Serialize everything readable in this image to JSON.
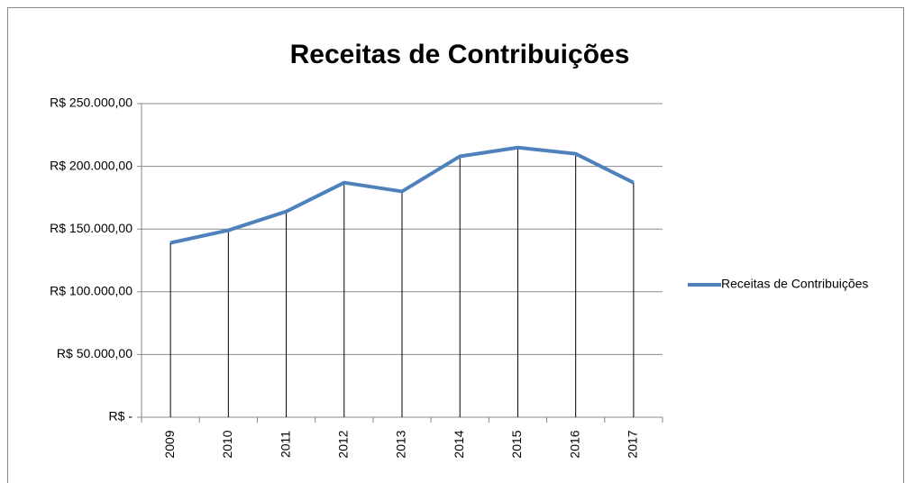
{
  "chart_data": {
    "type": "line",
    "title": "Receitas de Contribuições",
    "categories": [
      "2009",
      "2010",
      "2011",
      "2012",
      "2013",
      "2014",
      "2015",
      "2016",
      "2017"
    ],
    "series": [
      {
        "name": "Receitas de Contribuições",
        "color": "#4f81bd",
        "values": [
          139000,
          149000,
          164000,
          187000,
          180000,
          208000,
          215000,
          210000,
          187000
        ]
      }
    ],
    "ylim": [
      0,
      250000
    ],
    "yticks": [
      {
        "value": 0,
        "label": "R$ -"
      },
      {
        "value": 50000,
        "label": "R$ 50.000,00"
      },
      {
        "value": 100000,
        "label": "R$ 100.000,00"
      },
      {
        "value": 150000,
        "label": "R$ 150.000,00"
      },
      {
        "value": 200000,
        "label": "R$ 200.000,00"
      },
      {
        "value": 250000,
        "label": "R$ 250.000,00"
      }
    ],
    "grid": true,
    "drop_lines": true,
    "legend": "right"
  }
}
